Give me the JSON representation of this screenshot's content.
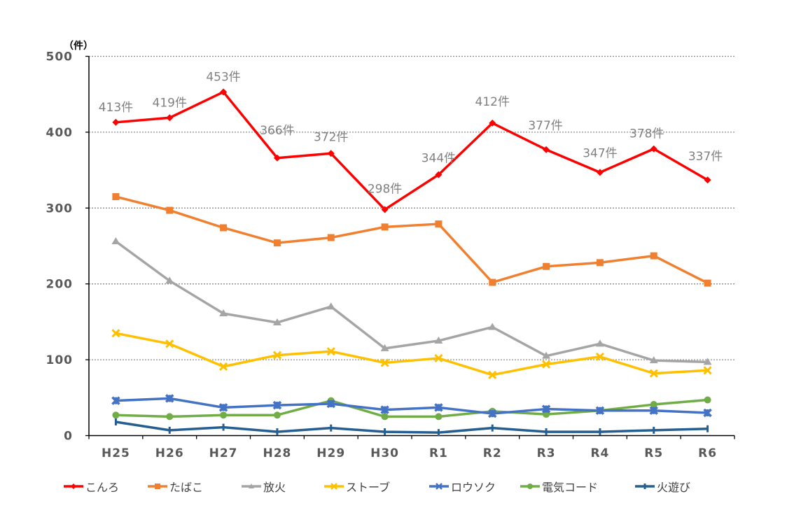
{
  "chart_data": {
    "type": "line",
    "title": "",
    "unit_label": "（件）",
    "xlabel": "",
    "ylabel": "件",
    "ylim": [
      0,
      500
    ],
    "yticks": [
      0,
      100,
      200,
      300,
      400,
      500
    ],
    "ytick_labels": [
      "0",
      "100",
      "200",
      "300",
      "400",
      "500"
    ],
    "grid": true,
    "legend_position": "bottom",
    "categories": [
      "H25",
      "H26",
      "H27",
      "H28",
      "H29",
      "H30",
      "R1",
      "R2",
      "R3",
      "R4",
      "R5",
      "R6"
    ],
    "series": [
      {
        "name": "こんろ",
        "color": "#FF0000",
        "marker": "diamond",
        "values": [
          413,
          419,
          453,
          366,
          372,
          298,
          344,
          412,
          377,
          347,
          378,
          337
        ],
        "labels": [
          "413件",
          "419件",
          "453件",
          "366件",
          "372件",
          "298件",
          "344件",
          "412件",
          "377件",
          "347件",
          "378件",
          "337件"
        ]
      },
      {
        "name": "たばこ",
        "color": "#F08030",
        "marker": "square",
        "values": [
          315,
          297,
          274,
          254,
          261,
          275,
          279,
          202,
          223,
          228,
          237,
          201
        ]
      },
      {
        "name": "放火",
        "color": "#A5A5A5",
        "marker": "triangle",
        "values": [
          256,
          204,
          161,
          149,
          170,
          115,
          125,
          143,
          105,
          121,
          99,
          97
        ]
      },
      {
        "name": "ストーブ",
        "color": "#FFC000",
        "marker": "x",
        "values": [
          135,
          121,
          91,
          106,
          111,
          96,
          102,
          80,
          94,
          104,
          82,
          86
        ]
      },
      {
        "name": "ロウソク",
        "color": "#4472C4",
        "marker": "star",
        "values": [
          46,
          49,
          37,
          40,
          42,
          34,
          37,
          29,
          35,
          33,
          33,
          30
        ]
      },
      {
        "name": "電気コード",
        "color": "#70AD47",
        "marker": "circle",
        "values": [
          27,
          25,
          27,
          27,
          46,
          25,
          25,
          32,
          28,
          33,
          41,
          47
        ]
      },
      {
        "name": "火遊び",
        "color": "#255E91",
        "marker": "plus",
        "values": [
          18,
          7,
          11,
          5,
          10,
          5,
          4,
          10,
          5,
          5,
          7,
          9
        ]
      }
    ]
  }
}
